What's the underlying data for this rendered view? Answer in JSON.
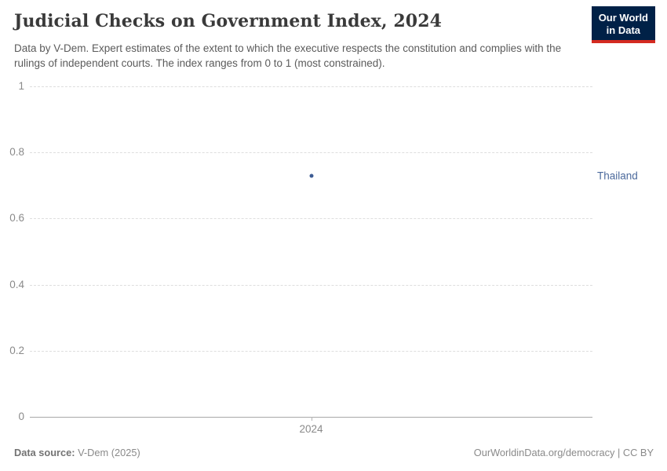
{
  "header": {
    "title": "Judicial Checks on Government Index, 2024",
    "subtitle": "Data by V-Dem. Expert estimates of the extent to which the executive respects the constitution and complies with the rulings of independent courts. The index ranges from 0 to 1 (most constrained).",
    "logo": {
      "line1": "Our World",
      "line2": "in Data",
      "bg_color": "#002147",
      "accent_color": "#D42B21"
    }
  },
  "chart_data": {
    "type": "scatter",
    "title": "Judicial Checks on Government Index, 2024",
    "xlabel": "",
    "ylabel": "",
    "ylim": [
      0,
      1
    ],
    "yticks": [
      0,
      0.2,
      0.4,
      0.6,
      0.8,
      1
    ],
    "xticks": [
      "2024"
    ],
    "grid": true,
    "legend_position": "right-of-last-point",
    "series": [
      {
        "name": "Thailand",
        "x": [
          2024
        ],
        "y": [
          0.73
        ],
        "color": "#3d5c94",
        "label_color": "#4c6a9c"
      }
    ]
  },
  "footer": {
    "data_source_label": "Data source:",
    "data_source_value": "V-Dem (2025)",
    "attribution": "OurWorldinData.org/democracy | CC BY"
  }
}
